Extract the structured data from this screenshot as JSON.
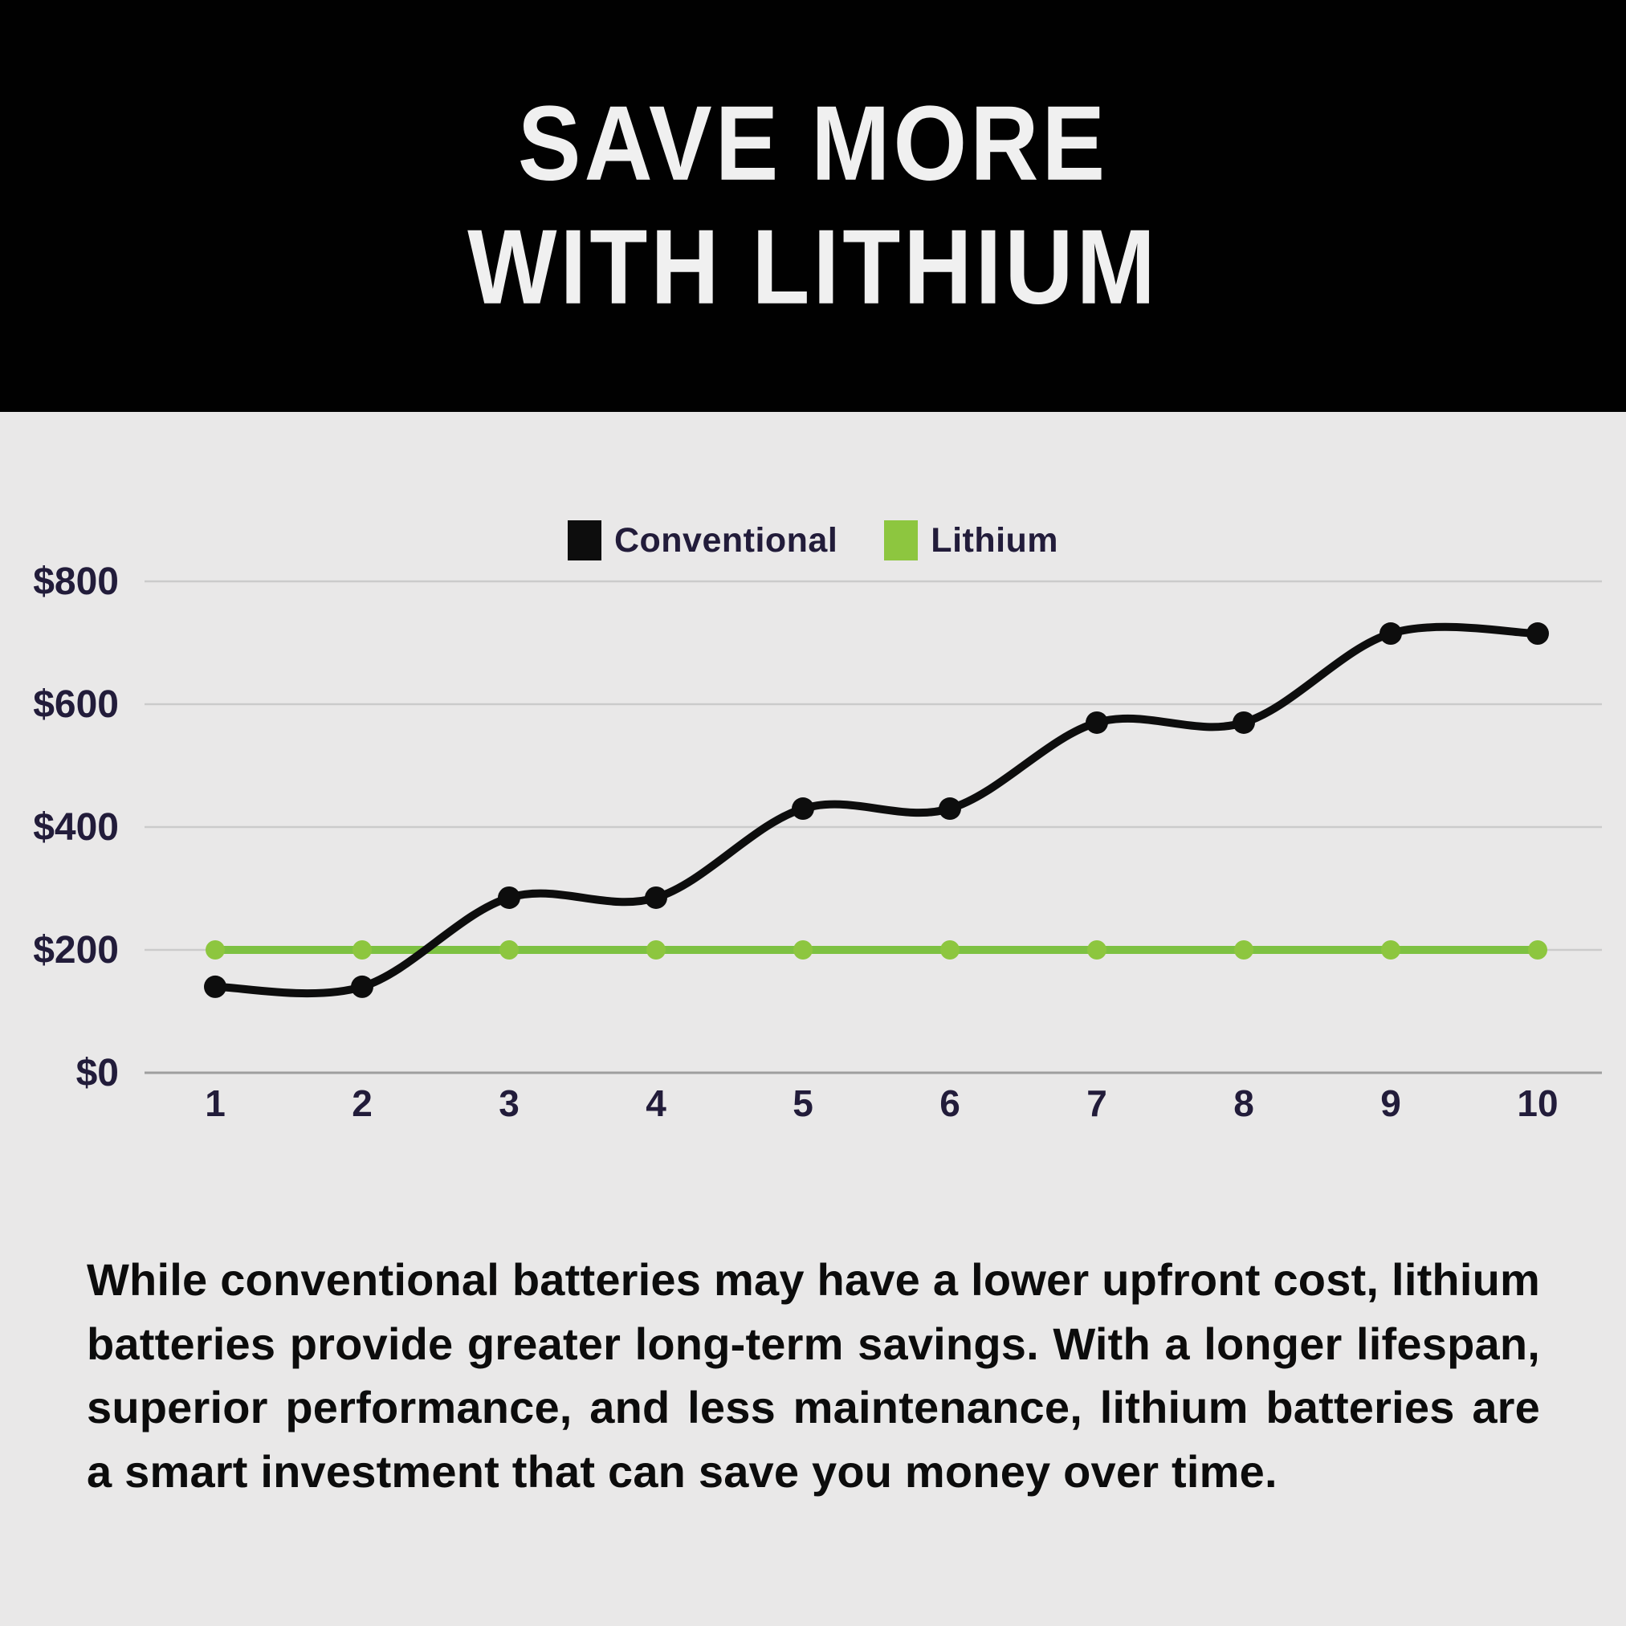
{
  "header": {
    "title_line1": "SAVE MORE",
    "title_line2": "WITH LITHIUM"
  },
  "legend": {
    "items": [
      {
        "label": "Conventional",
        "color": "#0d0d0d"
      },
      {
        "label": "Lithium",
        "color": "#8dc63f"
      }
    ]
  },
  "chart_data": {
    "type": "line",
    "x": [
      1,
      2,
      3,
      4,
      5,
      6,
      7,
      8,
      9,
      10
    ],
    "x_tick_labels": [
      "1",
      "2",
      "3",
      "4",
      "5",
      "6",
      "7",
      "8",
      "9",
      "10"
    ],
    "series": [
      {
        "name": "Conventional",
        "color": "#0d0d0d",
        "dot_color": "#0d0d0d",
        "values": [
          140,
          140,
          285,
          285,
          430,
          430,
          570,
          570,
          715,
          715
        ]
      },
      {
        "name": "Lithium",
        "color": "#7dc142",
        "dot_color": "#8dc63f",
        "values": [
          200,
          200,
          200,
          200,
          200,
          200,
          200,
          200,
          200,
          200
        ]
      }
    ],
    "y_ticks": [
      {
        "value": 0,
        "label": "$0"
      },
      {
        "value": 200,
        "label": "$200"
      },
      {
        "value": 400,
        "label": "$400"
      },
      {
        "value": 600,
        "label": "$600"
      },
      {
        "value": 800,
        "label": "$800"
      }
    ],
    "ylim": [
      0,
      800
    ],
    "grid": true,
    "legend_position": "top-center",
    "title": "",
    "xlabel": "",
    "ylabel": ""
  },
  "body": {
    "paragraph": "While conventional batteries may have a lower upfront cost, lithium batteries provide greater long-term savings. With a longer lifespan, superior performance, and less maintenance, lithium batteries are a smart investment that can save you money over time."
  },
  "colors": {
    "background": "#e9e8e8",
    "banner": "#010101",
    "title_text": "#f0f0f0",
    "axis_text": "#221c3a",
    "gridline": "#cbcbcb",
    "zero_line": "#9e9e9e",
    "body_text": "#0c0c0c",
    "accent_green": "#8dc63f"
  }
}
